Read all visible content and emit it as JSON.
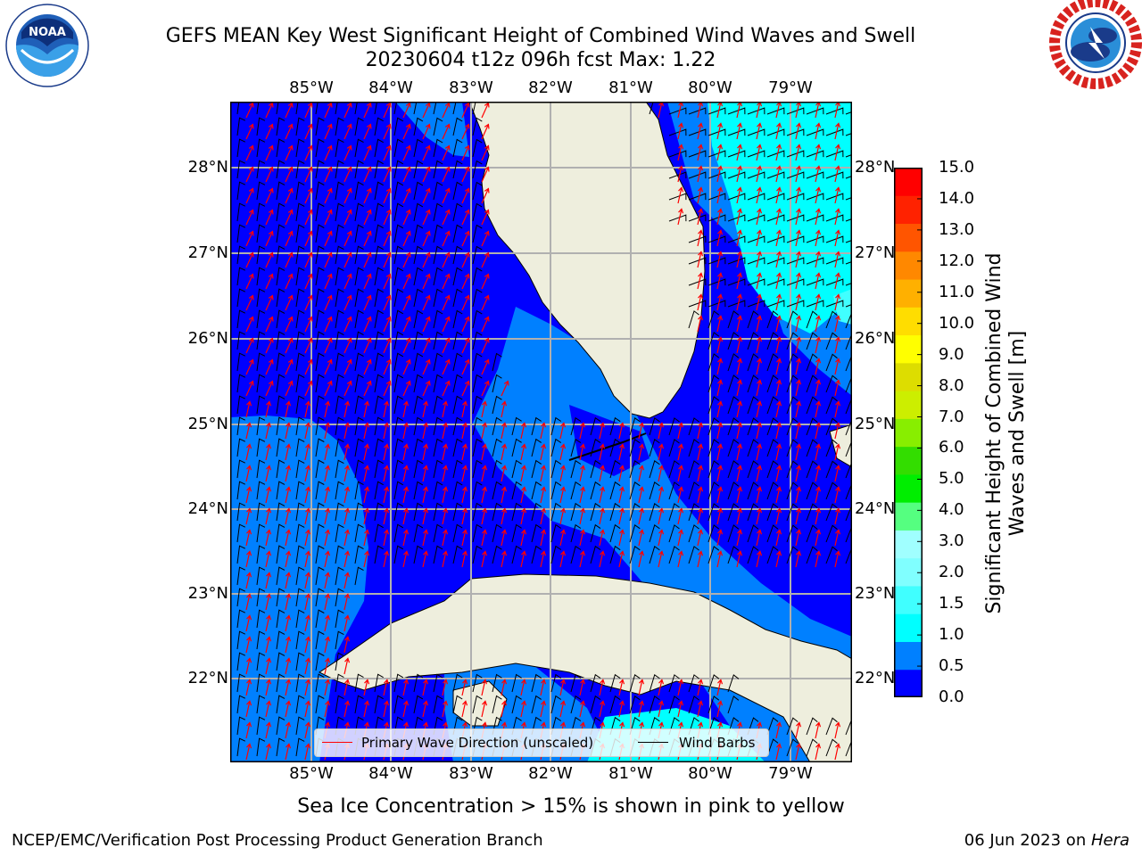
{
  "header": {
    "title_line1": "GEFS MEAN Key West Significant Height of Combined Wind Waves and Swell",
    "title_line2": "20230604 t12z 096h fcst   Max: 1.22"
  },
  "logos": {
    "noaa": {
      "text": "NOAA",
      "ring_text": "NATIONAL OCEANIC AND ATMOSPHERIC ADMINISTRATION · U.S. DEPARTMENT OF COMMERCE"
    },
    "nws": {
      "ring_text": "NATIONAL WEATHER SERVICE"
    }
  },
  "map": {
    "lon_labels": [
      "85°W",
      "84°W",
      "83°W",
      "82°W",
      "81°W",
      "80°W",
      "79°W"
    ],
    "lat_labels": [
      "28°N",
      "27°N",
      "26°N",
      "25°N",
      "24°N",
      "23°N",
      "22°N"
    ],
    "colors": {
      "land": "#eeeedd",
      "level_0_0_5": "#0000ff",
      "level_0_5_1_0": "#0080ff",
      "level_1_0_1_5": "#00ffff",
      "wave_arrow": "#ff0000",
      "wind_barb": "#000000"
    }
  },
  "legend": {
    "wave_direction": "Primary Wave Direction (unscaled)",
    "wind_barbs": "Wind Barbs"
  },
  "colorbar": {
    "label": "Significant Height of Combined Wind Waves and Swell [m]",
    "ticks": [
      "0.0",
      "0.5",
      "1.0",
      "1.5",
      "2.0",
      "3.0",
      "4.0",
      "5.0",
      "6.0",
      "7.0",
      "8.0",
      "9.0",
      "10.0",
      "11.0",
      "12.0",
      "13.0",
      "14.0",
      "15.0"
    ],
    "colors": [
      "#0000ff",
      "#0080ff",
      "#00ffff",
      "#40ffff",
      "#80ffff",
      "#a0ffff",
      "#55ff80",
      "#00ee00",
      "#33dd00",
      "#88ee00",
      "#ccee00",
      "#dddd00",
      "#ffff00",
      "#ffdd00",
      "#ffb000",
      "#ff8800",
      "#ff5500",
      "#ff2200",
      "#ff0000"
    ]
  },
  "notes": {
    "sea_ice": "Sea Ice Concentration > 15% is shown in pink to yellow"
  },
  "footer": {
    "left": "NCEP/EMC/Verification Post Processing Product Generation Branch",
    "date": "06 Jun 2023 on ",
    "host": "Hera"
  }
}
